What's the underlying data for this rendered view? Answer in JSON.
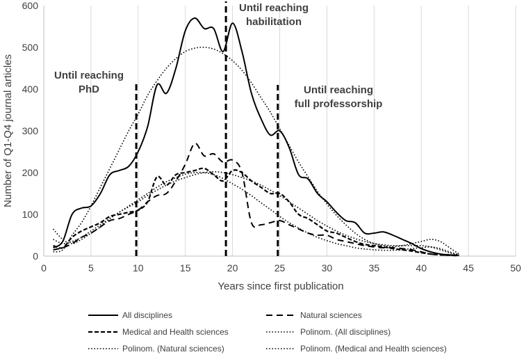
{
  "chart_data": {
    "type": "line",
    "xlabel": "Years since first publication",
    "ylabel": "Number of Q1-Q4 journal articles",
    "xlim": [
      0,
      50
    ],
    "ylim": [
      0,
      600
    ],
    "xticks": [
      0,
      5,
      10,
      15,
      20,
      25,
      30,
      35,
      40,
      45,
      50
    ],
    "yticks": [
      0,
      100,
      200,
      300,
      400,
      500,
      600
    ],
    "grid": "vertical",
    "legend_position": "bottom",
    "series": [
      {
        "name": "All disciplines",
        "style": "solid",
        "x": [
          1,
          2,
          3,
          4,
          5,
          6,
          7,
          8,
          9,
          10,
          11,
          12,
          13,
          14,
          15,
          16,
          17,
          18,
          19,
          20,
          21,
          22,
          23,
          24,
          25,
          26,
          27,
          28,
          29,
          30,
          31,
          32,
          33,
          34,
          35,
          36,
          37,
          38,
          39,
          40,
          41,
          42,
          43,
          44
        ],
        "y": [
          20,
          35,
          100,
          115,
          120,
          150,
          195,
          205,
          215,
          250,
          310,
          410,
          390,
          450,
          540,
          570,
          545,
          545,
          490,
          558,
          490,
          390,
          330,
          290,
          300,
          260,
          195,
          185,
          150,
          130,
          105,
          85,
          80,
          55,
          55,
          58,
          50,
          40,
          30,
          18,
          10,
          5,
          3,
          2
        ]
      },
      {
        "name": "Natural sciences",
        "style": "dashed",
        "x": [
          1,
          2,
          3,
          4,
          5,
          6,
          7,
          8,
          9,
          10,
          11,
          12,
          13,
          14,
          15,
          16,
          17,
          18,
          19,
          20,
          21,
          22,
          23,
          24,
          25,
          26,
          27,
          28,
          29,
          30,
          31,
          32,
          33,
          34,
          35,
          36,
          37,
          38,
          39,
          40,
          41,
          42,
          43,
          44
        ],
        "y": [
          15,
          20,
          30,
          45,
          55,
          70,
          85,
          90,
          100,
          110,
          130,
          145,
          150,
          180,
          220,
          270,
          240,
          245,
          225,
          230,
          200,
          80,
          75,
          80,
          85,
          75,
          65,
          55,
          50,
          50,
          40,
          35,
          30,
          25,
          22,
          20,
          20,
          18,
          15,
          10,
          5,
          3,
          2,
          1
        ]
      },
      {
        "name": "Medical and Health sciences",
        "style": "dashed-heavy",
        "x": [
          1,
          2,
          3,
          4,
          5,
          6,
          7,
          8,
          9,
          10,
          11,
          12,
          13,
          14,
          15,
          16,
          17,
          18,
          19,
          20,
          21,
          22,
          23,
          24,
          25,
          26,
          27,
          28,
          29,
          30,
          31,
          32,
          33,
          34,
          35,
          36,
          37,
          38,
          39,
          40,
          41,
          42,
          43,
          44
        ],
        "y": [
          25,
          20,
          45,
          60,
          70,
          80,
          95,
          100,
          105,
          110,
          130,
          190,
          170,
          195,
          200,
          205,
          210,
          195,
          180,
          205,
          200,
          180,
          165,
          150,
          150,
          130,
          100,
          90,
          75,
          60,
          55,
          45,
          35,
          28,
          25,
          22,
          18,
          15,
          12,
          8,
          5,
          3,
          2,
          1
        ]
      },
      {
        "name": "Polinom. (All disciplines)",
        "style": "dotted",
        "x": [
          1,
          2,
          3,
          4,
          5,
          6,
          7,
          8,
          9,
          10,
          11,
          12,
          13,
          14,
          15,
          16,
          17,
          18,
          19,
          20,
          21,
          22,
          23,
          24,
          25,
          26,
          27,
          28,
          29,
          30,
          31,
          32,
          33,
          34,
          35,
          36,
          37,
          38,
          39,
          40,
          41,
          42,
          43,
          44
        ],
        "y": [
          10,
          15,
          50,
          80,
          120,
          165,
          210,
          255,
          300,
          340,
          385,
          420,
          450,
          473,
          490,
          498,
          500,
          496,
          485,
          468,
          445,
          415,
          380,
          345,
          305,
          265,
          225,
          190,
          155,
          125,
          98,
          75,
          55,
          40,
          30,
          25,
          23,
          25,
          30,
          35,
          40,
          35,
          20,
          5
        ]
      },
      {
        "name": "Polinom. (Natural sciences)",
        "style": "dotted",
        "x": [
          1,
          2,
          3,
          4,
          5,
          6,
          7,
          8,
          9,
          10,
          11,
          12,
          13,
          14,
          15,
          16,
          17,
          18,
          19,
          20,
          21,
          22,
          23,
          24,
          25,
          26,
          27,
          28,
          29,
          30,
          31,
          32,
          33,
          34,
          35,
          36,
          37,
          38,
          39,
          40,
          41,
          42,
          43,
          44
        ],
        "y": [
          65,
          40,
          30,
          40,
          55,
          70,
          90,
          105,
          120,
          135,
          150,
          165,
          178,
          188,
          196,
          200,
          200,
          195,
          186,
          173,
          160,
          145,
          128,
          112,
          95,
          80,
          67,
          55,
          45,
          37,
          30,
          25,
          20,
          17,
          15,
          14,
          14,
          15,
          18,
          20,
          22,
          18,
          10,
          3
        ]
      },
      {
        "name": "Polinom. (Medical and Health sciences)",
        "style": "dotted",
        "x": [
          1,
          2,
          3,
          4,
          5,
          6,
          7,
          8,
          9,
          10,
          11,
          12,
          13,
          14,
          15,
          16,
          17,
          18,
          19,
          20,
          21,
          22,
          23,
          24,
          25,
          26,
          27,
          28,
          29,
          30,
          31,
          32,
          33,
          34,
          35,
          36,
          37,
          38,
          39,
          40,
          41,
          42,
          43,
          44
        ],
        "y": [
          40,
          30,
          35,
          45,
          60,
          75,
          90,
          105,
          118,
          130,
          145,
          158,
          170,
          180,
          188,
          195,
          200,
          202,
          200,
          195,
          188,
          180,
          170,
          158,
          145,
          130,
          115,
          100,
          85,
          72,
          60,
          50,
          42,
          35,
          30,
          27,
          25,
          25,
          25,
          25,
          22,
          15,
          8,
          2
        ]
      }
    ],
    "annotations": [
      {
        "text_lines": [
          "Until reaching",
          "PhD"
        ],
        "x": 10
      },
      {
        "text_lines": [
          "Until reaching",
          "habilitation"
        ],
        "x": 19.4
      },
      {
        "text_lines": [
          "Until reaching",
          "full professorship"
        ],
        "x": 24.8
      }
    ],
    "vlines": [
      {
        "x": 9.8,
        "ymax": 420
      },
      {
        "x": 19.3,
        "ymax": 610
      },
      {
        "x": 24.8,
        "ymax": 410
      }
    ]
  }
}
